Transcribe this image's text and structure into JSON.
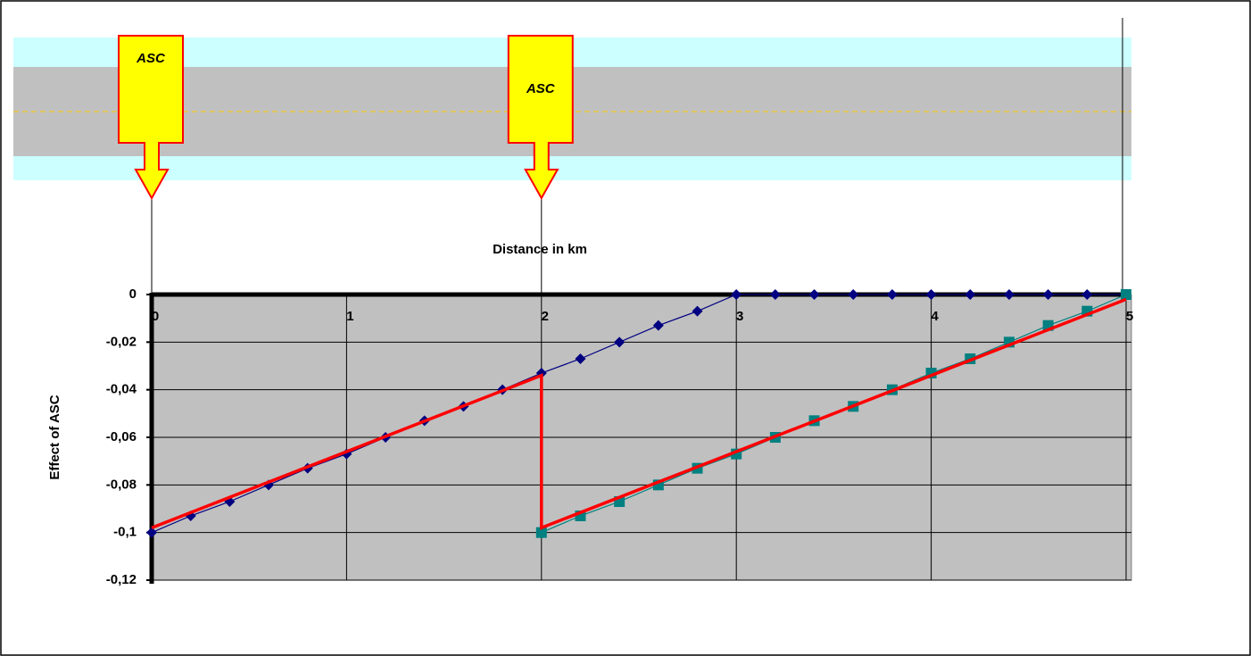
{
  "chart_data": {
    "type": "line",
    "title": "Distance in km",
    "y_label": "Effect of ASC",
    "annotations": [
      {
        "text": "ASC",
        "x": 0
      },
      {
        "text": "ASC",
        "x": 2
      }
    ],
    "xlim": [
      0,
      5
    ],
    "xticks": [
      0,
      1,
      2,
      3,
      4,
      5
    ],
    "ylim": [
      -0.12,
      0
    ],
    "yticks": [
      {
        "value": 0,
        "label": "0"
      },
      {
        "value": -0.02,
        "label": "-0,02"
      },
      {
        "value": -0.04,
        "label": "-0,04"
      },
      {
        "value": -0.06,
        "label": "-0,06"
      },
      {
        "value": -0.08,
        "label": "-0,08"
      },
      {
        "value": -0.1,
        "label": "-0,1"
      },
      {
        "value": -0.12,
        "label": "-0,12"
      }
    ],
    "grid": true,
    "series": [
      {
        "color": "#000080",
        "marker": "diamond",
        "x": [
          0,
          0.2,
          0.4,
          0.6,
          0.8,
          1,
          1.2,
          1.4,
          1.6,
          1.8,
          2,
          2.2,
          2.4,
          2.6,
          2.8,
          3,
          3.2,
          3.4,
          3.6,
          3.8,
          4,
          4.2,
          4.4,
          4.6,
          4.8,
          5
        ],
        "values": [
          -0.1,
          -0.093,
          -0.087,
          -0.08,
          -0.073,
          -0.067,
          -0.06,
          -0.053,
          -0.047,
          -0.04,
          -0.033,
          -0.027,
          -0.02,
          -0.013,
          -0.007,
          0,
          0,
          0,
          0,
          0,
          0,
          0,
          0,
          0,
          0,
          0
        ]
      },
      {
        "color": "#008080",
        "marker": "square",
        "x": [
          2,
          2.2,
          2.4,
          2.6,
          2.8,
          3,
          3.2,
          3.4,
          3.6,
          3.8,
          4,
          4.2,
          4.4,
          4.6,
          4.8,
          5
        ],
        "values": [
          -0.1,
          -0.093,
          -0.087,
          -0.08,
          -0.073,
          -0.067,
          -0.06,
          -0.053,
          -0.047,
          -0.04,
          -0.033,
          -0.027,
          -0.02,
          -0.013,
          -0.007,
          0
        ]
      },
      {
        "color": "#ff0000",
        "marker": "none",
        "x": [
          0,
          2,
          2,
          5
        ],
        "values": [
          -0.098,
          -0.034,
          -0.098,
          -0.002
        ]
      }
    ]
  }
}
